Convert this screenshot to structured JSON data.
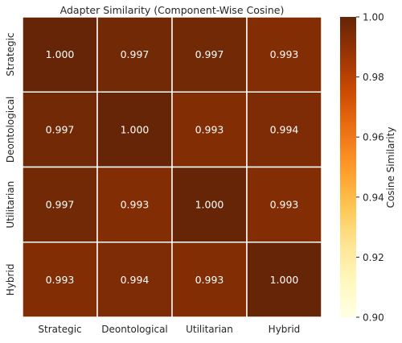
{
  "chart_data": {
    "type": "heatmap",
    "title": "Adapter Similarity (Component-Wise Cosine)",
    "rows": [
      "Strategic",
      "Deontological",
      "Utilitarian",
      "Hybrid"
    ],
    "columns": [
      "Strategic",
      "Deontological",
      "Utilitarian",
      "Hybrid"
    ],
    "values": [
      [
        1.0,
        0.997,
        0.997,
        0.993
      ],
      [
        0.997,
        1.0,
        0.993,
        0.994
      ],
      [
        0.997,
        0.993,
        1.0,
        0.993
      ],
      [
        0.993,
        0.994,
        0.993,
        1.0
      ]
    ],
    "value_labels": [
      [
        "1.000",
        "0.997",
        "0.997",
        "0.993"
      ],
      [
        "0.997",
        "1.000",
        "0.993",
        "0.994"
      ],
      [
        "0.997",
        "0.993",
        "1.000",
        "0.993"
      ],
      [
        "0.993",
        "0.994",
        "0.993",
        "1.000"
      ]
    ],
    "colorbar": {
      "label": "Cosine Similarity",
      "vmin": 0.9,
      "vmax": 1.0,
      "ticks": [
        "0.90",
        "0.92",
        "0.94",
        "0.96",
        "0.98",
        "1.00"
      ],
      "colormap": "YlOrBr"
    },
    "annotation_color": "#ffffff",
    "cell_border_color": "#ffffff"
  }
}
